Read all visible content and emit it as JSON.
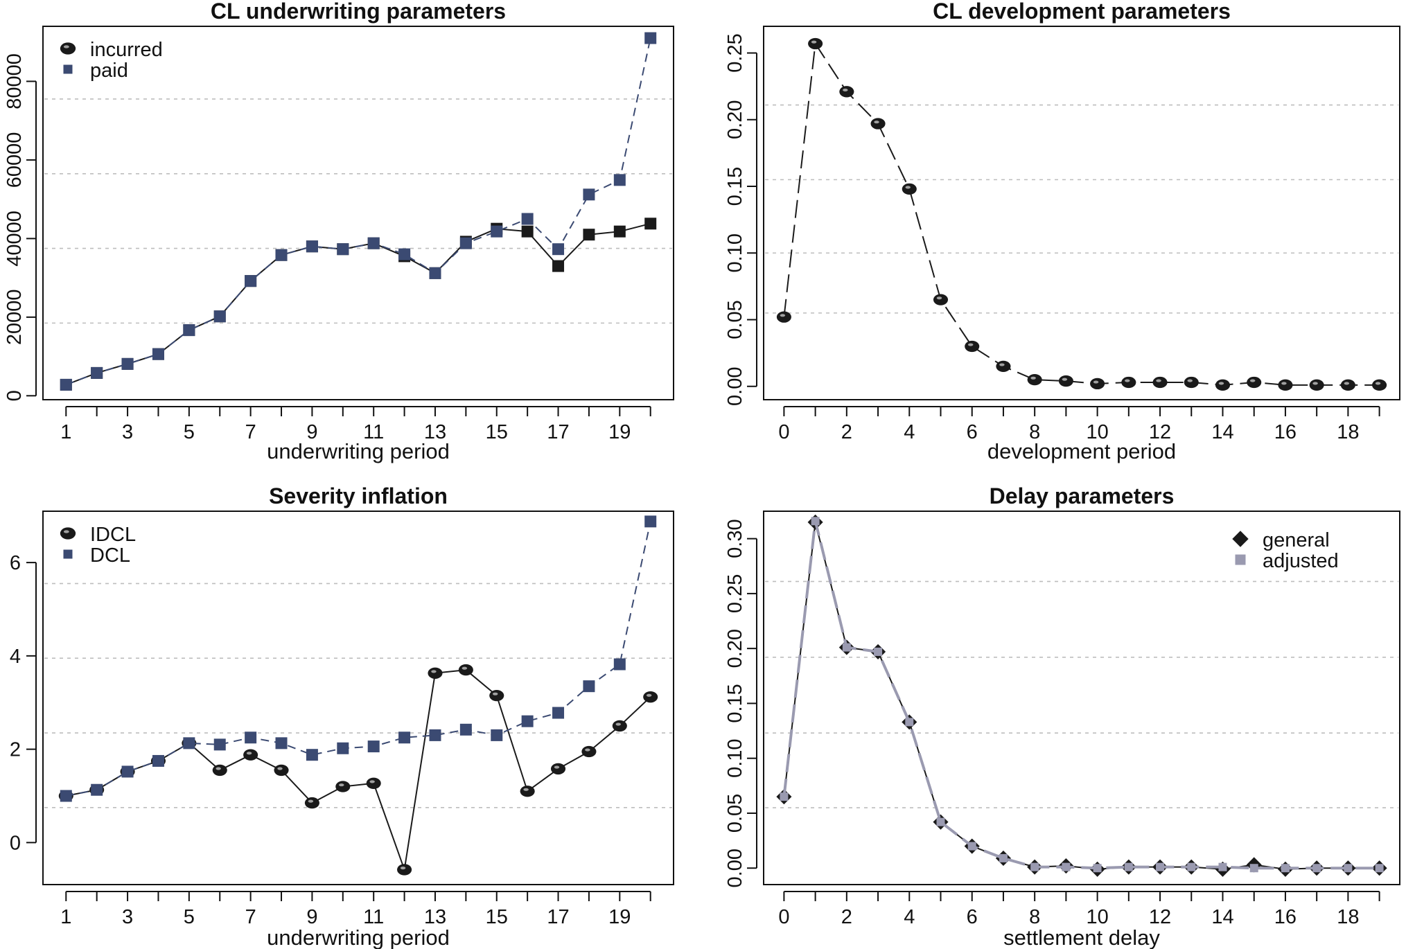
{
  "colors": {
    "black": "#1a1a1a",
    "navy": "#3b4a72",
    "lavender": "#9a9ab0",
    "grid": "#bdbdbd"
  },
  "chart_data": [
    {
      "id": "p1",
      "type": "line",
      "title": "CL underwriting parameters",
      "xlabel": "underwriting period",
      "ylabel": "",
      "x": [
        1,
        2,
        3,
        4,
        5,
        6,
        7,
        8,
        9,
        10,
        11,
        12,
        13,
        14,
        15,
        16,
        17,
        18,
        19,
        20
      ],
      "xticks": [
        1,
        3,
        5,
        7,
        9,
        11,
        13,
        15,
        17,
        19
      ],
      "yticks": [
        0,
        20000,
        40000,
        60000,
        80000
      ],
      "ylim": [
        -1000,
        94000
      ],
      "grid_y": [
        18500,
        37500,
        56500,
        75500
      ],
      "legend_position": "top-left",
      "series": [
        {
          "name": "incurred",
          "marker": "square",
          "color": "#1a1a1a",
          "dash": "solid",
          "legend_marker": "circle",
          "values": [
            2800,
            5800,
            8100,
            10600,
            16700,
            20200,
            29200,
            35800,
            38000,
            37300,
            38800,
            35500,
            31200,
            39200,
            42500,
            41800,
            33000,
            41000,
            41800,
            43800
          ]
        },
        {
          "name": "paid",
          "marker": "square",
          "color": "#3b4a72",
          "dash": "dashed",
          "legend_marker": "square",
          "values": [
            2800,
            5800,
            8100,
            10600,
            16700,
            20200,
            29200,
            35800,
            38000,
            37300,
            38800,
            36000,
            31200,
            38800,
            41800,
            45000,
            37300,
            51200,
            54900,
            91000
          ]
        }
      ]
    },
    {
      "id": "p2",
      "type": "line",
      "title": "CL development parameters",
      "xlabel": "development period",
      "ylabel": "",
      "x": [
        0,
        1,
        2,
        3,
        4,
        5,
        6,
        7,
        8,
        9,
        10,
        11,
        12,
        13,
        14,
        15,
        16,
        17,
        18,
        19
      ],
      "xticks": [
        0,
        2,
        4,
        6,
        8,
        10,
        12,
        14,
        16,
        18
      ],
      "yticks": [
        "0.00",
        "0.05",
        "0.10",
        "0.15",
        "0.20",
        "0.25"
      ],
      "ylim": [
        -0.01,
        0.27
      ],
      "grid_y": [
        0.055,
        0.1,
        0.155,
        0.211
      ],
      "series": [
        {
          "name": "",
          "marker": "circle",
          "color": "#1a1a1a",
          "dash": "longdash",
          "values": [
            0.052,
            0.257,
            0.221,
            0.197,
            0.148,
            0.065,
            0.03,
            0.015,
            0.005,
            0.004,
            0.002,
            0.003,
            0.003,
            0.003,
            0.001,
            0.003,
            0.001,
            0.001,
            0.001,
            0.001
          ]
        }
      ]
    },
    {
      "id": "p3",
      "type": "line",
      "title": "Severity inflation",
      "xlabel": "underwriting period",
      "ylabel": "",
      "x": [
        1,
        2,
        3,
        4,
        5,
        6,
        7,
        8,
        9,
        10,
        11,
        12,
        13,
        14,
        15,
        16,
        17,
        18,
        19,
        20
      ],
      "xticks": [
        1,
        3,
        5,
        7,
        9,
        11,
        13,
        15,
        17,
        19
      ],
      "yticks": [
        0,
        2,
        4,
        6
      ],
      "ylim": [
        -0.9,
        7.1
      ],
      "grid_y": [
        0.75,
        2.35,
        3.95,
        5.55
      ],
      "legend_position": "top-left",
      "series": [
        {
          "name": "IDCL",
          "marker": "circle",
          "color": "#1a1a1a",
          "dash": "solid",
          "legend_marker": "circle",
          "values": [
            1.0,
            1.13,
            1.52,
            1.75,
            2.13,
            1.55,
            1.88,
            1.55,
            0.85,
            1.2,
            1.27,
            -0.58,
            3.63,
            3.7,
            3.15,
            1.1,
            1.58,
            1.95,
            2.5,
            3.12
          ]
        },
        {
          "name": "DCL",
          "marker": "square",
          "color": "#3b4a72",
          "dash": "dashed",
          "legend_marker": "square",
          "values": [
            1.0,
            1.13,
            1.52,
            1.75,
            2.13,
            2.1,
            2.25,
            2.13,
            1.88,
            2.02,
            2.06,
            2.25,
            2.3,
            2.42,
            2.3,
            2.6,
            2.78,
            3.35,
            3.82,
            6.88
          ]
        }
      ]
    },
    {
      "id": "p4",
      "type": "line",
      "title": "Delay parameters",
      "xlabel": "settlement delay",
      "ylabel": "",
      "x": [
        0,
        1,
        2,
        3,
        4,
        5,
        6,
        7,
        8,
        9,
        10,
        11,
        12,
        13,
        14,
        15,
        16,
        17,
        18,
        19
      ],
      "xticks": [
        0,
        2,
        4,
        6,
        8,
        10,
        12,
        14,
        16,
        18
      ],
      "yticks": [
        "0.00",
        "0.05",
        "0.10",
        "0.15",
        "0.20",
        "0.25",
        "0.30"
      ],
      "ylim": [
        -0.015,
        0.325
      ],
      "grid_y": [
        0.055,
        0.123,
        0.192,
        0.261
      ],
      "legend_position": "top-right",
      "series": [
        {
          "name": "general",
          "marker": "diamond",
          "color": "#1a1a1a",
          "dash": "solid",
          "legend_marker": "diamond",
          "values": [
            0.065,
            0.315,
            0.201,
            0.197,
            0.133,
            0.042,
            0.02,
            0.009,
            0.001,
            0.002,
            -0.001,
            0.001,
            0.001,
            0.001,
            -0.001,
            0.003,
            -0.001,
            0.0,
            0.0,
            0.0
          ]
        },
        {
          "name": "adjusted",
          "marker": "square",
          "color": "#9a9ab0",
          "dash": "longdash",
          "legend_marker": "square",
          "values": [
            0.065,
            0.316,
            0.201,
            0.197,
            0.133,
            0.042,
            0.02,
            0.009,
            0.001,
            0.001,
            0.0,
            0.001,
            0.001,
            0.001,
            0.001,
            0.0,
            0.0,
            0.0,
            0.0,
            0.0
          ]
        }
      ]
    }
  ]
}
